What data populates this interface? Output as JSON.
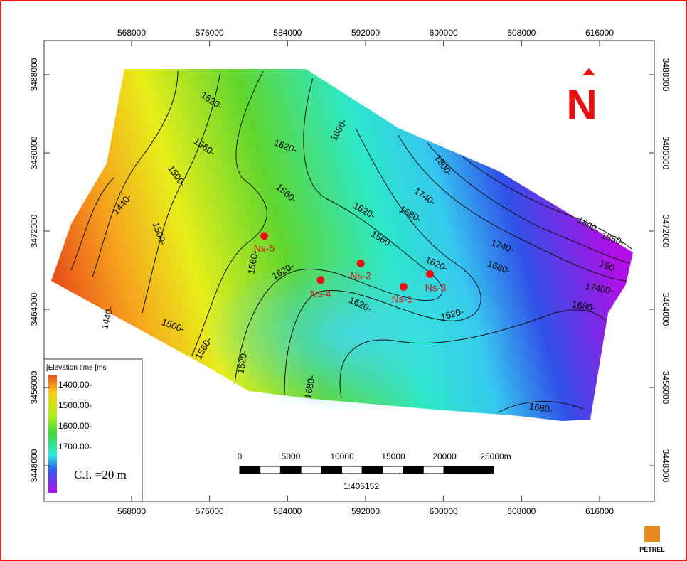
{
  "map": {
    "xticks": [
      568000,
      576000,
      584000,
      592000,
      600000,
      608000,
      616000
    ],
    "yticks": [
      3488000,
      3480000,
      3472000,
      3464000,
      3456000,
      3448000
    ],
    "wells": [
      {
        "name": "Ns-1",
        "x": 595900,
        "y": 3466300
      },
      {
        "name": "Ns-2",
        "x": 591500,
        "y": 3468700
      },
      {
        "name": "Ns-3",
        "x": 598600,
        "y": 3467600
      },
      {
        "name": "Ns-4",
        "x": 587400,
        "y": 3467000
      },
      {
        "name": "Ns-5",
        "x": 581600,
        "y": 3471500
      }
    ],
    "contour_labels": [
      "1620-",
      "1560-",
      "1620-",
      "1680-",
      "1500-",
      "1440-",
      "1560-",
      "1620-",
      "1680-",
      "1740-",
      "1800-",
      "1740-",
      "1800-",
      "1860-",
      "1560-",
      "1500-",
      "1560-",
      "1620-",
      "1680-",
      "1620-",
      "180",
      "17400-",
      "1680-",
      "1620-",
      "1620-",
      "1440-",
      "1500-",
      "1560-",
      "1620-",
      "1680-",
      "1680-"
    ],
    "legend": {
      "title": "[Elevation time [ms",
      "labels": [
        "1400.00-",
        "1500.00-",
        "1600.00-",
        "1700.00-"
      ]
    },
    "contour_interval": "C.I. =20 m",
    "scale_bar": {
      "labels": [
        "0",
        "5000",
        "10000",
        "15000",
        "20000",
        "25000m"
      ],
      "ratio": "1:405152"
    },
    "north": "N",
    "logo": "PETREL"
  }
}
